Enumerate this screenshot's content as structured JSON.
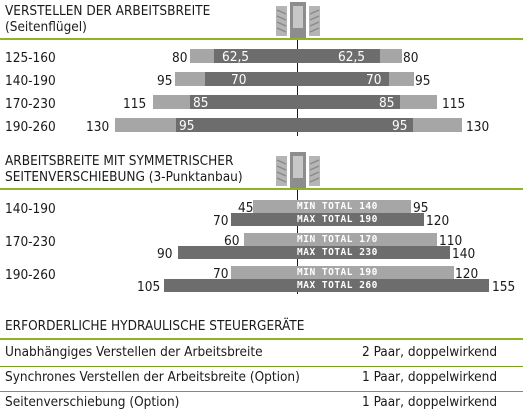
{
  "section1": {
    "title": "VERSTELLEN DER ARBEITSBREITE",
    "subtitle": "(Seitenflügel)",
    "rows": [
      {
        "label": "125-160",
        "outer_left": "80",
        "inner_left": "62,5",
        "inner_right": "62,5",
        "outer_right": "80"
      },
      {
        "label": "140-190",
        "outer_left": "95",
        "inner_left": "70",
        "inner_right": "70",
        "outer_right": "95"
      },
      {
        "label": "170-230",
        "outer_left": "115",
        "inner_left": "85",
        "inner_right": "85",
        "outer_right": "115"
      },
      {
        "label": "190-260",
        "outer_left": "130",
        "inner_left": "95",
        "inner_right": "95",
        "outer_right": "130"
      }
    ]
  },
  "section2": {
    "title_line1": "ARBEITSBREITE MIT SYMMETRISCHER",
    "title_line2": "SEITENVERSCHIEBUNG (3-Punktanbau)",
    "rows": [
      {
        "label": "140-190",
        "min_left": "45",
        "min_total": "MIN TOTAL 140",
        "min_right": "95",
        "max_left": "70",
        "max_total": "MAX TOTAL 190",
        "max_right": "120"
      },
      {
        "label": "170-230",
        "min_left": "60",
        "min_total": "MIN TOTAL 170",
        "min_right": "110",
        "max_left": "90",
        "max_total": "MAX TOTAL 230",
        "max_right": "140"
      },
      {
        "label": "190-260",
        "min_left": "70",
        "min_total": "MIN TOTAL 190",
        "min_right": "120",
        "max_left": "105",
        "max_total": "MAX TOTAL 260",
        "max_right": "155"
      }
    ]
  },
  "hydraulics": {
    "title": "ERFORDERLICHE HYDRAULISCHE STEUERGERÄTE",
    "rows": [
      {
        "item": "Unabhängiges Verstellen der Arbeitsbreite",
        "value": "2 Paar, doppelwirkend"
      },
      {
        "item": "Synchrones Verstellen der Arbeitsbreite (Option)",
        "value": "1 Paar, doppelwirkend"
      },
      {
        "item": "Seitenverschiebung (Option)",
        "value": "1 Paar, doppelwirkend"
      }
    ]
  },
  "colors": {
    "accent": "#8fb227",
    "bar_light": "#a6a6a6",
    "bar_dark": "#6d6d6d"
  },
  "icons": [
    "tractor-rear-icon",
    "tractor-rear-icon"
  ]
}
